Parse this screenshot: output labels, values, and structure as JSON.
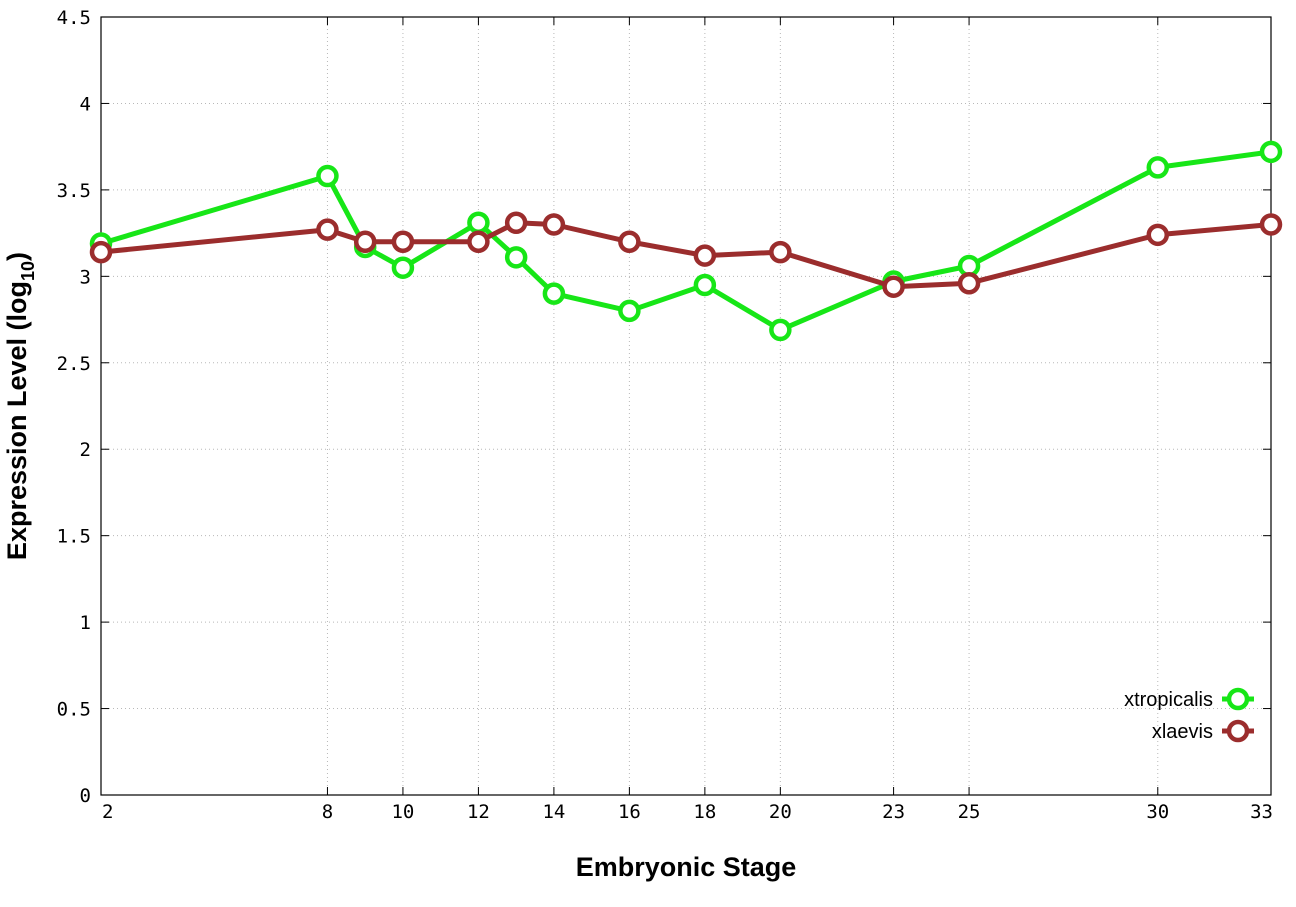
{
  "chart_data": {
    "type": "line",
    "title": "",
    "xlabel": "Embryonic Stage",
    "ylabel": "Expression Level (log",
    "ylabel_subscript": "10",
    "ylabel_suffix": ")",
    "xlim": [
      2,
      33
    ],
    "ylim": [
      0,
      4.5
    ],
    "xticks": [
      2,
      8,
      10,
      12,
      14,
      16,
      18,
      20,
      23,
      25,
      30,
      33
    ],
    "yticks": [
      0,
      0.5,
      1,
      1.5,
      2,
      2.5,
      3,
      3.5,
      4,
      4.5
    ],
    "ytick_labels": [
      "0",
      "0.5",
      "1",
      "1.5",
      "2",
      "2.5",
      "3",
      "3.5",
      "4",
      "4.5"
    ],
    "grid": true,
    "legend_position": "bottom-right",
    "series": [
      {
        "name": "xtropicalis",
        "color": "#17e617",
        "x": [
          2,
          8,
          9,
          10,
          12,
          13,
          14,
          16,
          18,
          20,
          23,
          25,
          30,
          33
        ],
        "y": [
          3.19,
          3.58,
          3.17,
          3.05,
          3.31,
          3.11,
          2.9,
          2.8,
          2.95,
          2.69,
          2.97,
          3.06,
          3.63,
          3.72
        ]
      },
      {
        "name": "xlaevis",
        "color": "#9b2d2d",
        "x": [
          2,
          8,
          9,
          10,
          12,
          13,
          14,
          16,
          18,
          20,
          23,
          25,
          30,
          33
        ],
        "y": [
          3.14,
          3.27,
          3.2,
          3.2,
          3.2,
          3.31,
          3.3,
          3.2,
          3.12,
          3.14,
          2.94,
          2.96,
          3.24,
          3.3
        ]
      }
    ]
  }
}
